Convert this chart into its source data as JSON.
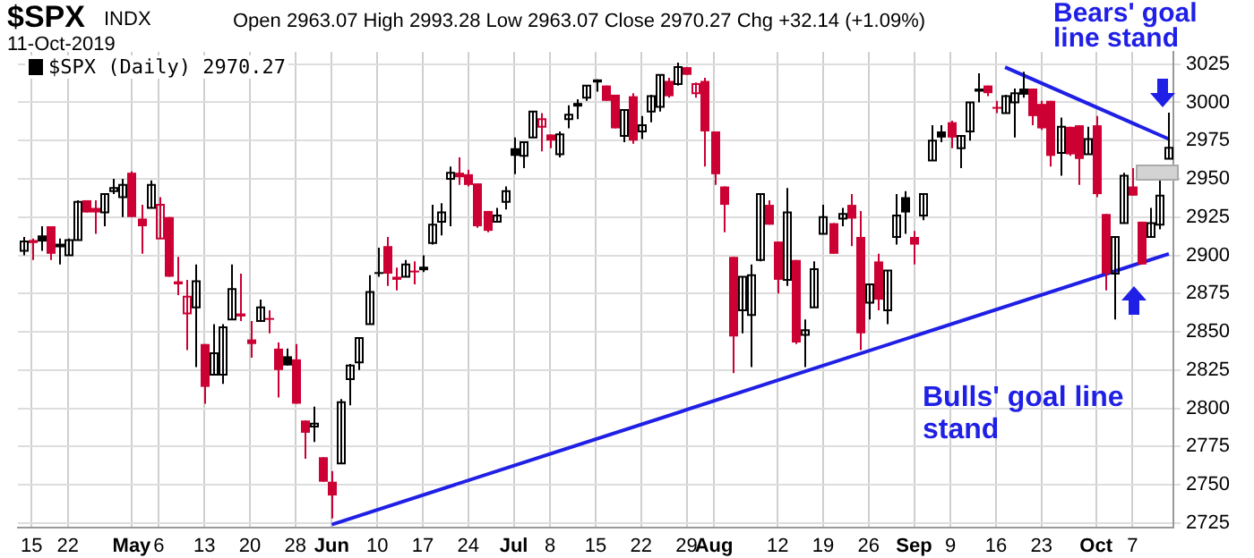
{
  "chart_data": {
    "type": "candlestick",
    "title": "$SPX",
    "subtitle": "INDX",
    "annotations": [
      "11-Oct-2019",
      "Open 2963.07 High 2993.28 Low 2963.07 Close 2970.27 Chg +32.14 (+1.09%)",
      "Bears' goal line stand",
      "Bulls' goal line stand"
    ],
    "categories": [
      null,
      "15",
      null,
      null,
      null,
      "22",
      null,
      null,
      null,
      null,
      null,
      null,
      "May",
      null,
      null,
      "6",
      null,
      null,
      null,
      null,
      "13",
      null,
      null,
      null,
      null,
      "20",
      null,
      null,
      null,
      null,
      "28",
      null,
      null,
      null,
      "Jun",
      null,
      null,
      null,
      null,
      "10",
      null,
      null,
      null,
      null,
      "17",
      null,
      null,
      null,
      null,
      "24",
      null,
      null,
      null,
      null,
      "Jul",
      null,
      null,
      null,
      "8",
      null,
      null,
      null,
      null,
      "15",
      null,
      null,
      null,
      null,
      "22",
      null,
      null,
      null,
      null,
      "29",
      null,
      null,
      "Aug",
      null,
      null,
      null,
      null,
      null,
      null,
      "12",
      null,
      null,
      null,
      null,
      "19",
      null,
      null,
      null,
      null,
      "26",
      null,
      null,
      null,
      null,
      "Sep",
      null,
      null,
      null,
      "9",
      null,
      null,
      null,
      null,
      "16",
      null,
      null,
      null,
      null,
      "23",
      null,
      null,
      null,
      null,
      null,
      "Oct",
      null,
      null,
      null,
      "7",
      null,
      null,
      null,
      null
    ],
    "series": [
      {
        "name": "$SPX (Daily) 2970.27",
        "ohlc": [
          [
            2903,
            2912,
            2900,
            2909
          ],
          [
            2910,
            2911,
            2897,
            2908
          ],
          [
            2913,
            2919,
            2903,
            2909
          ],
          [
            2919,
            2919,
            2897,
            2901
          ],
          [
            2906,
            2911,
            2894,
            2907
          ],
          [
            2900,
            2911,
            2900,
            2910
          ],
          [
            2910,
            2936,
            2910,
            2935
          ],
          [
            2936,
            2936,
            2928,
            2928
          ],
          [
            2931,
            2936,
            2914,
            2928
          ],
          [
            2928,
            2940,
            2919,
            2940
          ],
          [
            2942,
            2950,
            2940,
            2944
          ],
          [
            2938,
            2950,
            2925,
            2946
          ],
          [
            2954,
            2955,
            2925,
            2925
          ],
          [
            2924,
            2933,
            2901,
            2919
          ],
          [
            2931,
            2949,
            2931,
            2946
          ],
          [
            2911,
            2938,
            2911,
            2933
          ],
          [
            2925,
            2925,
            2886,
            2886
          ],
          [
            2883,
            2899,
            2874,
            2881
          ],
          [
            2862,
            2884,
            2838,
            2873
          ],
          [
            2866,
            2894,
            2827,
            2883
          ],
          [
            2842,
            2842,
            2803,
            2814
          ],
          [
            2822,
            2855,
            2822,
            2836
          ],
          [
            2822,
            2855,
            2816,
            2853
          ],
          [
            2858,
            2894,
            2858,
            2878
          ],
          [
            2862,
            2888,
            2857,
            2860
          ],
          [
            2845,
            2857,
            2833,
            2842
          ],
          [
            2857,
            2871,
            2857,
            2866
          ],
          [
            2859,
            2864,
            2849,
            2858
          ],
          [
            2839,
            2843,
            2807,
            2825
          ],
          [
            2834,
            2839,
            2828,
            2828
          ],
          [
            2832,
            2842,
            2803,
            2803
          ],
          [
            2792,
            2792,
            2767,
            2784
          ],
          [
            2788,
            2801,
            2778,
            2790
          ],
          [
            2768,
            2768,
            2752,
            2752
          ],
          [
            2752,
            2759,
            2728,
            2743
          ],
          [
            2764,
            2806,
            2764,
            2804
          ],
          [
            2819,
            2829,
            2802,
            2828
          ],
          [
            2830,
            2846,
            2825,
            2846
          ],
          [
            2855,
            2887,
            2855,
            2876
          ],
          [
            2889,
            2905,
            2886,
            2888
          ],
          [
            2906,
            2912,
            2880,
            2888
          ],
          [
            2886,
            2892,
            2877,
            2884
          ],
          [
            2886,
            2897,
            2886,
            2894
          ],
          [
            2890,
            2896,
            2881,
            2889
          ],
          [
            2891,
            2900,
            2889,
            2892
          ],
          [
            2908,
            2933,
            2907,
            2920
          ],
          [
            2922,
            2934,
            2913,
            2928
          ],
          [
            2950,
            2958,
            2919,
            2954
          ],
          [
            2954,
            2964,
            2946,
            2951
          ],
          [
            2953,
            2956,
            2945,
            2946
          ],
          [
            2947,
            2947,
            2918,
            2919
          ],
          [
            2929,
            2929,
            2915,
            2916
          ],
          [
            2922,
            2931,
            2922,
            2926
          ],
          [
            2935,
            2945,
            2930,
            2942
          ],
          [
            2970,
            2977,
            2953,
            2965
          ],
          [
            2965,
            2974,
            2957,
            2974
          ],
          [
            2977,
            2994,
            2977,
            2994
          ],
          [
            2984,
            2993,
            2968,
            2989
          ],
          [
            2979,
            2979,
            2970,
            2975
          ],
          [
            2966,
            2981,
            2964,
            2979
          ],
          [
            2989,
            2998,
            2983,
            2992
          ],
          [
            2998,
            3002,
            2989,
            2999
          ],
          [
            3003,
            3011,
            3001,
            3011
          ],
          [
            3015,
            3015,
            3007,
            3013
          ],
          [
            3011,
            3011,
            3001,
            3001
          ],
          [
            3005,
            3005,
            2983,
            2983
          ],
          [
            2978,
            2995,
            2974,
            2995
          ],
          [
            3004,
            3006,
            2973,
            2975
          ],
          [
            2981,
            2991,
            2976,
            2985
          ],
          [
            2994,
            3005,
            2987,
            3004
          ],
          [
            2997,
            3018,
            2994,
            3018
          ],
          [
            3014,
            3016,
            3003,
            3004
          ],
          [
            3012,
            3026,
            3011,
            3023
          ],
          [
            3023,
            3023,
            3018,
            3018
          ],
          [
            3006,
            3013,
            3003,
            3012
          ],
          [
            3014,
            3016,
            2958,
            2981
          ],
          [
            2981,
            2981,
            2946,
            2953
          ],
          [
            2945,
            2945,
            2915,
            2933
          ],
          [
            2899,
            2899,
            2823,
            2847
          ],
          [
            2864,
            2886,
            2849,
            2886
          ],
          [
            2861,
            2894,
            2827,
            2887
          ],
          [
            2897,
            2940,
            2896,
            2940
          ],
          [
            2933,
            2936,
            2920,
            2920
          ],
          [
            2909,
            2909,
            2875,
            2884
          ],
          [
            2884,
            2944,
            2880,
            2928
          ],
          [
            2897,
            2897,
            2842,
            2843
          ],
          [
            2848,
            2858,
            2827,
            2851
          ],
          [
            2866,
            2896,
            2866,
            2891
          ],
          [
            2914,
            2933,
            2914,
            2925
          ],
          [
            2921,
            2921,
            2901,
            2901
          ],
          [
            2924,
            2931,
            2919,
            2927
          ],
          [
            2933,
            2940,
            2906,
            2924
          ],
          [
            2912,
            2929,
            2838,
            2849
          ],
          [
            2869,
            2881,
            2858,
            2881
          ],
          [
            2896,
            2901,
            2864,
            2871
          ],
          [
            2864,
            2890,
            2855,
            2890
          ],
          [
            2912,
            2940,
            2907,
            2926
          ],
          [
            2938,
            2942,
            2914,
            2928
          ],
          [
            2912,
            2916,
            2894,
            2907
          ],
          [
            2926,
            2940,
            2923,
            2940
          ],
          [
            2962,
            2985,
            2962,
            2975
          ],
          [
            2981,
            2985,
            2974,
            2977
          ],
          [
            2987,
            2988,
            2970,
            2977
          ],
          [
            2970,
            2978,
            2957,
            2978
          ],
          [
            2981,
            3000,
            2975,
            3000
          ],
          [
            3009,
            3019,
            3000,
            3007
          ],
          [
            3011,
            3011,
            3004,
            3006
          ],
          [
            2997,
            3001,
            2993,
            2996
          ],
          [
            2993,
            3005,
            2993,
            3004
          ],
          [
            3000,
            3009,
            2977,
            3006
          ],
          [
            3009,
            3020,
            3003,
            3005
          ],
          [
            3009,
            3009,
            2985,
            2991
          ],
          [
            2999,
            3001,
            2982,
            2983
          ],
          [
            3001,
            3001,
            2958,
            2965
          ],
          [
            2967,
            2990,
            2952,
            2984
          ],
          [
            2984,
            2984,
            2965,
            2966
          ],
          [
            2985,
            2985,
            2946,
            2963
          ],
          [
            2966,
            2984,
            2966,
            2976
          ],
          [
            2985,
            2991,
            2938,
            2940
          ],
          [
            2927,
            2927,
            2877,
            2888
          ],
          [
            2888,
            2912,
            2858,
            2912
          ],
          [
            2921,
            2954,
            2921,
            2952
          ],
          [
            2945,
            2957,
            2939,
            2939
          ],
          [
            2922,
            2922,
            2894,
            2894
          ],
          [
            2912,
            2931,
            2912,
            2921
          ],
          [
            2920,
            2950,
            2917,
            2939
          ],
          [
            2963.07,
            2993.28,
            2963.07,
            2970.27
          ]
        ],
        "colors": [
          "#000000",
          "#cc0033",
          "#000000",
          "#cc0033",
          "#000000",
          "#000000",
          "#000000",
          "#cc0033",
          "#cc0033",
          "#000000",
          "#000000",
          "#000000",
          "#cc0033",
          "#cc0033",
          "#000000",
          "#cc0033",
          "#cc0033",
          "#cc0033",
          "#cc0033",
          "#000000",
          "#cc0033",
          "#000000",
          "#000000",
          "#000000",
          "#cc0033",
          "#cc0033",
          "#000000",
          "#cc0033",
          "#cc0033",
          "#000000",
          "#cc0033",
          "#cc0033",
          "#000000",
          "#cc0033",
          "#cc0033",
          "#000000",
          "#000000",
          "#000000",
          "#000000",
          "#000000",
          "#cc0033",
          "#cc0033",
          "#000000",
          "#cc0033",
          "#000000",
          "#000000",
          "#000000",
          "#000000",
          "#cc0033",
          "#cc0033",
          "#cc0033",
          "#cc0033",
          "#000000",
          "#000000",
          "#000000",
          "#000000",
          "#000000",
          "#cc0033",
          "#cc0033",
          "#000000",
          "#000000",
          "#000000",
          "#000000",
          "#000000",
          "#cc0033",
          "#cc0033",
          "#000000",
          "#cc0033",
          "#000000",
          "#000000",
          "#000000",
          "#cc0033",
          "#000000",
          "#cc0033",
          "#cc0033",
          "#cc0033",
          "#cc0033",
          "#cc0033",
          "#cc0033",
          "#000000",
          "#000000",
          "#000000",
          "#cc0033",
          "#cc0033",
          "#000000",
          "#cc0033",
          "#000000",
          "#000000",
          "#000000",
          "#cc0033",
          "#000000",
          "#cc0033",
          "#cc0033",
          "#000000",
          "#cc0033",
          "#000000",
          "#000000",
          "#000000",
          "#cc0033",
          "#000000",
          "#000000",
          "#000000",
          "#cc0033",
          "#000000",
          "#000000",
          "#000000",
          "#cc0033",
          "#cc0033",
          "#000000",
          "#000000",
          "#000000",
          "#cc0033",
          "#cc0033",
          "#cc0033",
          "#000000",
          "#cc0033",
          "#cc0033",
          "#000000",
          "#cc0033",
          "#cc0033",
          "#000000",
          "#000000",
          "#cc0033",
          "#cc0033",
          "#000000",
          "#000000",
          "#000000"
        ]
      },
      {
        "type": "line",
        "color": "#1f1fe6",
        "values": [
          null,
          null,
          null,
          null,
          null,
          null,
          null,
          null,
          null,
          null,
          null,
          null,
          null,
          null,
          null,
          null,
          null,
          null,
          null,
          null,
          null,
          null,
          null,
          null,
          null,
          null,
          null,
          null,
          null,
          null,
          null,
          null,
          null,
          null,
          2724,
          null,
          null,
          null,
          null,
          null,
          null,
          null,
          null,
          null,
          null,
          null,
          null,
          null,
          null,
          null,
          null,
          null,
          null,
          null,
          null,
          null,
          null,
          null,
          null,
          null,
          null,
          null,
          null,
          null,
          null,
          null,
          null,
          null,
          null,
          null,
          null,
          null,
          null,
          null,
          null,
          null,
          null,
          null,
          null,
          null,
          null,
          null,
          null,
          null,
          null,
          null,
          null,
          null,
          null,
          null,
          null,
          null,
          null,
          null,
          null,
          null,
          null,
          null,
          null,
          null,
          null,
          null,
          null,
          null,
          null,
          null,
          null,
          null,
          null,
          null,
          null,
          null,
          null,
          null,
          null,
          null,
          null,
          null,
          null,
          null,
          null,
          null,
          null,
          null,
          null,
          null,
          2901
        ]
      },
      {
        "type": "line",
        "color": "#1f1fe6",
        "values": [
          null,
          null,
          null,
          null,
          null,
          null,
          null,
          null,
          null,
          null,
          null,
          null,
          null,
          null,
          null,
          null,
          null,
          null,
          null,
          null,
          null,
          null,
          null,
          null,
          null,
          null,
          null,
          null,
          null,
          null,
          null,
          null,
          null,
          null,
          null,
          null,
          null,
          null,
          null,
          null,
          null,
          null,
          null,
          null,
          null,
          null,
          null,
          null,
          null,
          null,
          null,
          null,
          null,
          null,
          null,
          null,
          null,
          null,
          null,
          null,
          null,
          null,
          null,
          null,
          null,
          null,
          null,
          null,
          null,
          null,
          null,
          null,
          null,
          null,
          null,
          null,
          null,
          null,
          null,
          null,
          null,
          null,
          null,
          null,
          null,
          null,
          null,
          null,
          null,
          null,
          null,
          null,
          null,
          null,
          null,
          null,
          null,
          null,
          null,
          null,
          null,
          null,
          null,
          null,
          null,
          null,
          null,
          null,
          3023,
          null,
          null,
          null,
          null,
          null,
          null,
          null,
          null,
          null,
          null,
          null,
          null,
          null,
          null,
          null,
          null,
          null,
          2976
        ]
      }
    ],
    "ylim": [
      2722,
      3033
    ],
    "yticks": [
      2725,
      2750,
      2775,
      2800,
      2825,
      2850,
      2875,
      2900,
      2925,
      2950,
      2975,
      3000,
      3025
    ],
    "grid": true,
    "legend": "top left"
  }
}
